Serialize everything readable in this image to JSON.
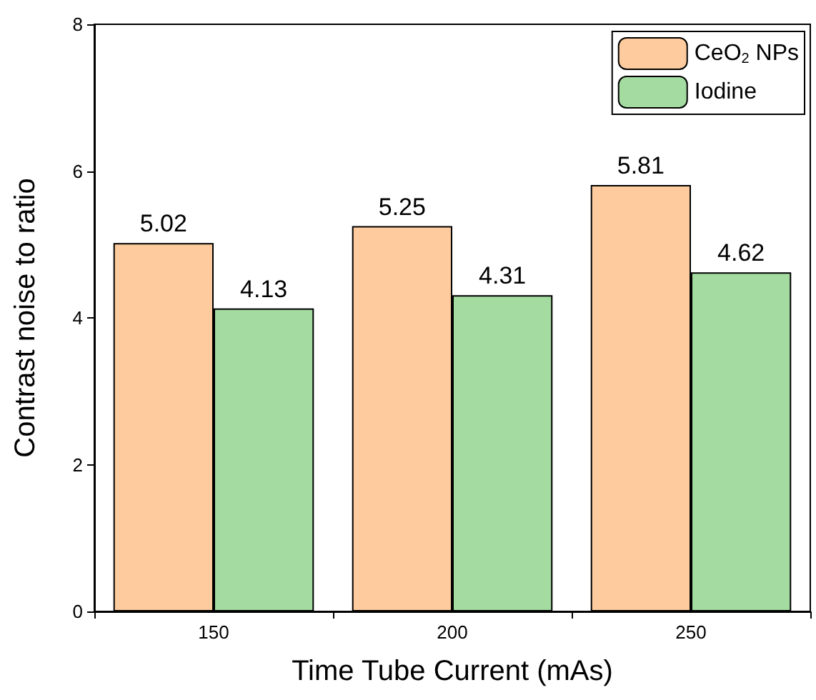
{
  "chart_data": {
    "type": "bar",
    "xlabel": "Time Tube Current (mAs)",
    "ylabel": "Contrast noise to ratio",
    "categories": [
      "150",
      "200",
      "250"
    ],
    "series": [
      {
        "name": "CeO$_{2}$ NPs",
        "color": "#fdcb9d",
        "values": [
          5.02,
          5.25,
          5.81
        ]
      },
      {
        "name": "Iodine",
        "color": "#a3dba0",
        "values": [
          4.13,
          4.31,
          4.62
        ]
      }
    ],
    "ylim": [
      0,
      8
    ],
    "yticks": [
      0,
      2,
      4,
      6,
      8
    ],
    "grid": false,
    "legend": "top right",
    "data_labels": true
  }
}
